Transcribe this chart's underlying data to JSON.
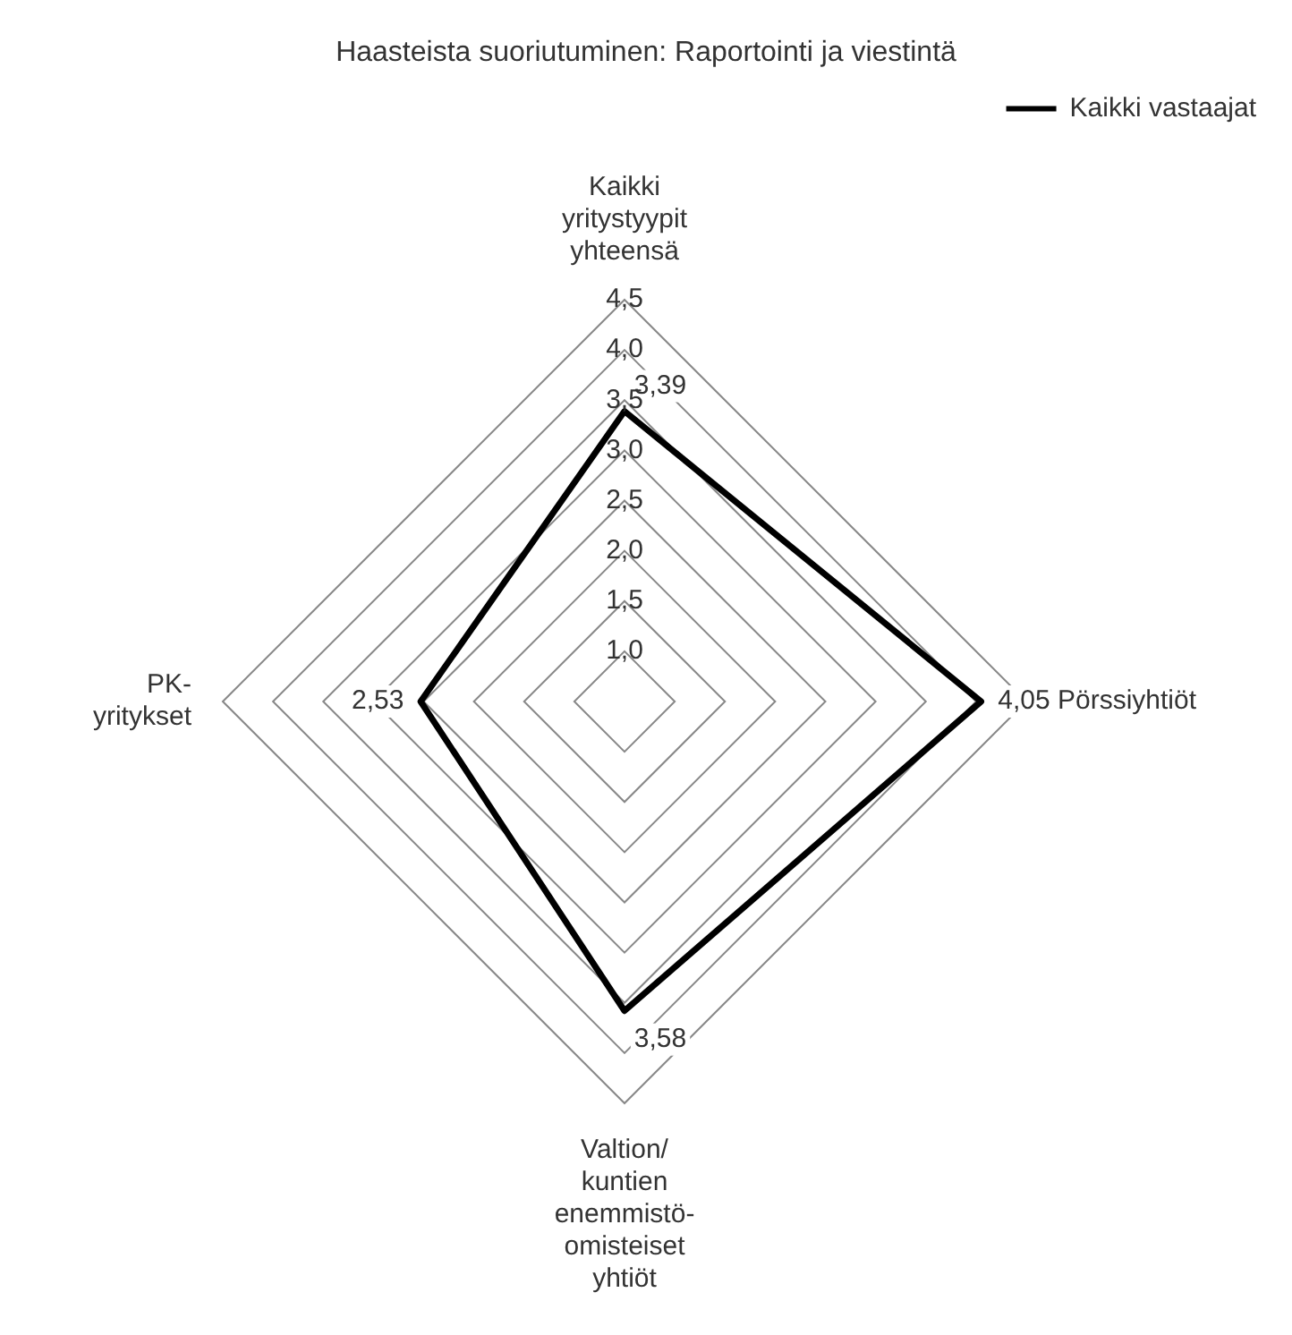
{
  "chart_data": {
    "type": "radar",
    "title": "Haasteista suoriutuminen: Raportointi ja viestintä",
    "categories": [
      "Kaikki yritystyypit yhteensä",
      "Pörssiyhtiöt",
      "Valtion/ kuntien enemmistö-omisteiset yhtiöt",
      "PK-yritykset"
    ],
    "series": [
      {
        "name": "Kaikki vastaajat",
        "color": "#000000",
        "values": [
          3.39,
          4.05,
          3.58,
          2.53
        ],
        "value_labels": [
          "3,39",
          "4,05",
          "3,58",
          "2,53"
        ]
      }
    ],
    "ylim": [
      0.5,
      4.5
    ],
    "yticks": [
      {
        "value": 1,
        "label": "1,0"
      },
      {
        "value": 1.5,
        "label": "1,5"
      },
      {
        "value": 2,
        "label": "2,0"
      },
      {
        "value": 2.5,
        "label": "2,5"
      },
      {
        "value": 3,
        "label": "3,0"
      },
      {
        "value": 3.5,
        "label": "3,5"
      },
      {
        "value": 4,
        "label": "4,0"
      },
      {
        "value": 4.5,
        "label": "4,5"
      }
    ],
    "grid": true,
    "legend": "top right",
    "marker": "none",
    "line_style": "solid"
  }
}
